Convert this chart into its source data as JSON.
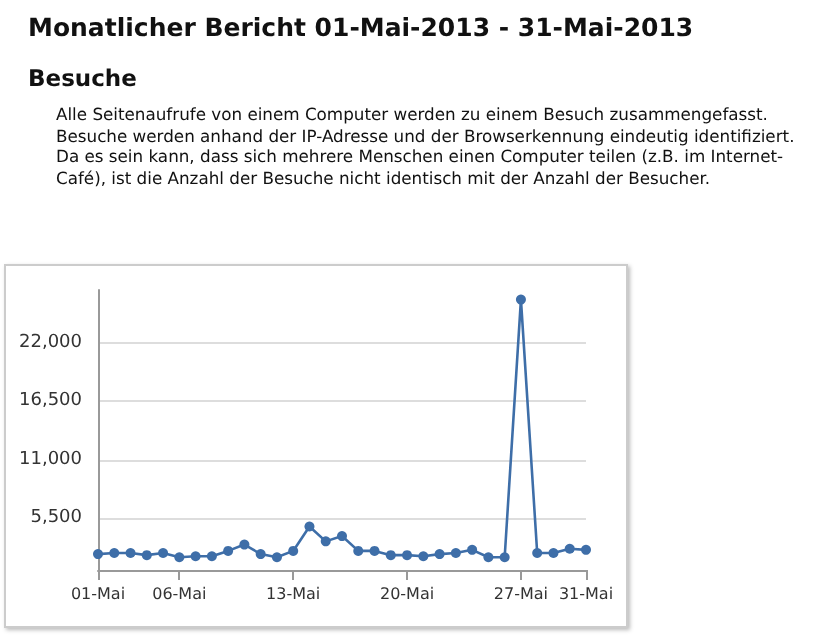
{
  "chart_data": {
    "type": "line",
    "title": "Monatlicher Bericht 01-Mai-2013 - 31-Mai-2013",
    "subtitle": "Besuche",
    "annotations": [
      "Alle Seitenaufrufe von einem Computer werden zu einem Besuch zusammengefasst. Besuche werden anhand der IP-Adresse und der Browserkennung eindeutig identifiziert. Da es sein kann, dass sich mehrere Menschen einen Computer teilen (z.B. im Internet-Café), ist die Anzahl der Besuche nicht identisch mit der Anzahl der Besucher."
    ],
    "categories": [
      "01-Mai",
      null,
      null,
      null,
      null,
      "06-Mai",
      null,
      null,
      null,
      null,
      null,
      null,
      "13-Mai",
      null,
      null,
      null,
      null,
      null,
      null,
      "20-Mai",
      null,
      null,
      null,
      null,
      null,
      null,
      "27-Mai",
      null,
      null,
      null,
      "31-Mai"
    ],
    "series": [
      {
        "color": "#3e6ea8",
        "values": [
          2100,
          2200,
          2200,
          2000,
          2200,
          1800,
          1900,
          1900,
          2400,
          3000,
          2100,
          1800,
          2400,
          4700,
          3300,
          3800,
          2400,
          2400,
          2000,
          2000,
          1900,
          2100,
          2200,
          2500,
          1800,
          1800,
          26100,
          2200,
          2200,
          2600,
          2500
        ]
      }
    ],
    "ylim": [
      600,
      27000
    ],
    "yticks": [
      {
        "value": 5500,
        "label": "5,500"
      },
      {
        "value": 11000,
        "label": "11,000"
      },
      {
        "value": 16500,
        "label": "16,500"
      },
      {
        "value": 22000,
        "label": "22,000"
      }
    ],
    "grid": "y",
    "marker": "circle",
    "line_style": "solid"
  }
}
